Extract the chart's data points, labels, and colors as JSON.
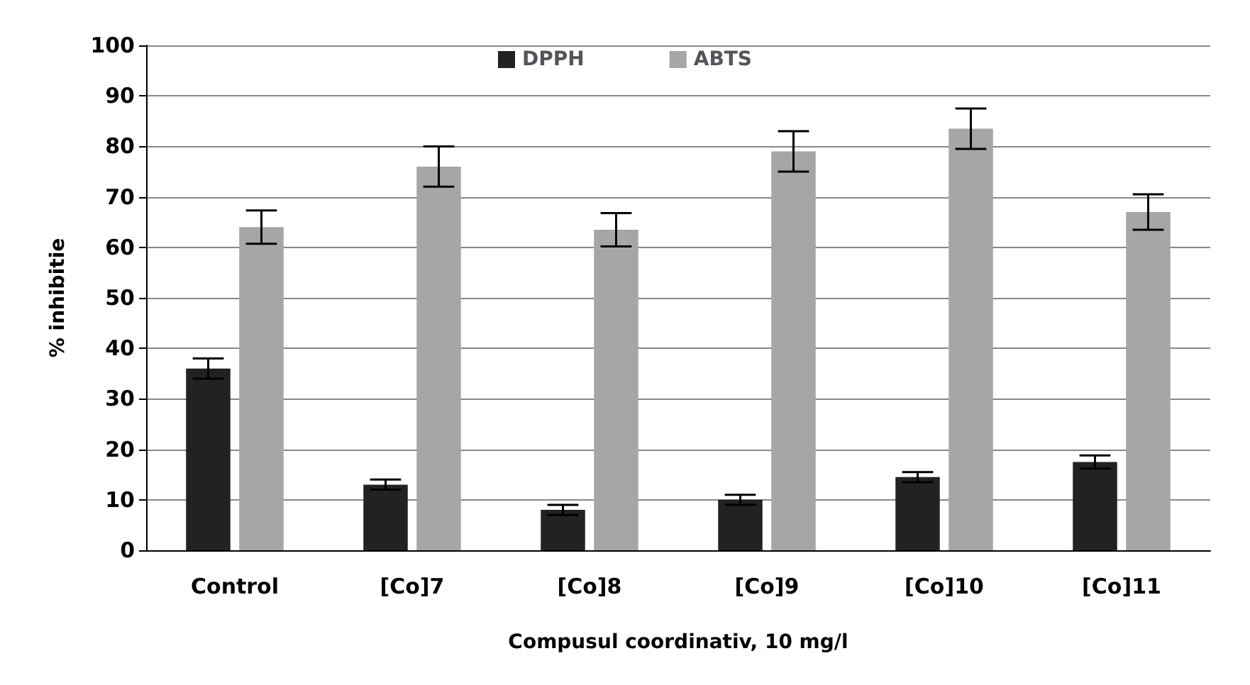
{
  "chart_data": {
    "type": "bar",
    "xlabel": "Compusul coordinativ, 10 mg/l",
    "ylabel": "% inhibitie",
    "categories": [
      "Control",
      "[Co]7",
      "[Co]8",
      "[Co]9",
      "[Co]10",
      "[Co]11"
    ],
    "series": [
      {
        "name": "DPPH",
        "color": "#222222",
        "values": [
          36,
          13,
          8,
          10,
          14.5,
          17.5
        ],
        "errors": [
          2,
          1,
          1,
          1,
          1,
          1.3
        ]
      },
      {
        "name": "ABTS",
        "color": "#a6a6a6",
        "values": [
          64,
          76,
          63.5,
          79,
          83.5,
          67
        ],
        "errors": [
          3.3,
          4,
          3.3,
          4,
          4,
          3.5
        ]
      }
    ],
    "ylim": [
      0,
      100
    ],
    "yticks": [
      0,
      10,
      20,
      30,
      40,
      50,
      60,
      70,
      80,
      90,
      100
    ],
    "grid": "y",
    "legend": "top"
  }
}
